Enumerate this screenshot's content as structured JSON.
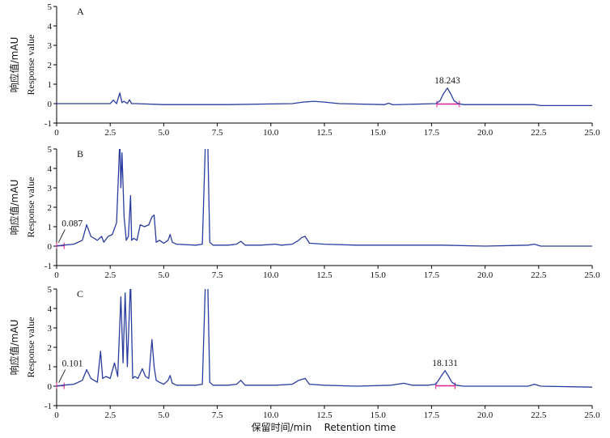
{
  "chart_data": [
    {
      "type": "line",
      "panel": "A",
      "ylabel_cn": "响应值/mAU",
      "ylabel_en": "Response value",
      "xlim": [
        0,
        25.0
      ],
      "ylim": [
        -1,
        5
      ],
      "yticks": [
        -1,
        0,
        1,
        2,
        3,
        4,
        5
      ],
      "xticks": [
        "0",
        "2.5",
        "5.0",
        "7.5",
        "10.0",
        "12.5",
        "15.0",
        "17.5",
        "20.0",
        "22.5",
        "25.0"
      ],
      "series": [
        {
          "color": "#2a3d9e",
          "x": [
            0,
            1.3,
            2.5,
            2.65,
            2.8,
            2.95,
            3.05,
            3.15,
            3.3,
            3.4,
            3.5,
            3.7,
            5,
            8,
            11,
            11.5,
            12,
            12.5,
            13.2,
            15.3,
            15.5,
            15.7,
            17.7,
            17.9,
            18.05,
            18.24,
            18.4,
            18.55,
            18.75,
            19,
            20,
            22.3,
            22.6,
            25
          ],
          "y": [
            0,
            0,
            0,
            0.18,
            0,
            0.55,
            0.05,
            0.12,
            0,
            0.2,
            0,
            0,
            -0.05,
            -0.05,
            0,
            0.08,
            0.12,
            0.08,
            0,
            -0.05,
            0.02,
            -0.06,
            0,
            0.15,
            0.5,
            0.8,
            0.5,
            0.15,
            0,
            -0.05,
            -0.05,
            -0.05,
            -0.1,
            -0.1
          ]
        }
      ],
      "baselines": [
        {
          "color": "#e0208a",
          "x": [
            17.75,
            18.8
          ],
          "y": [
            -0.02,
            -0.02
          ]
        }
      ],
      "annotations": [
        {
          "text": "18.243",
          "x": 18.24,
          "y": 0.8
        }
      ]
    },
    {
      "type": "line",
      "panel": "B",
      "ylabel_cn": "响应值/mAU",
      "ylabel_en": "Response value",
      "xlim": [
        0,
        25.0
      ],
      "ylim": [
        -1,
        5
      ],
      "yticks": [
        -1,
        0,
        1,
        2,
        3,
        4,
        5
      ],
      "xticks": [
        "0",
        "2.5",
        "5.0",
        "7.5",
        "10.0",
        "12.5",
        "15.0",
        "17.5",
        "20.0",
        "22.5",
        "25.0"
      ],
      "series": [
        {
          "color": "#2a3d9e",
          "x": [
            0,
            0.3,
            0.8,
            1.2,
            1.4,
            1.6,
            1.9,
            2.1,
            2.2,
            2.4,
            2.6,
            2.8,
            2.95,
            3.0,
            3.05,
            3.15,
            3.25,
            3.35,
            3.45,
            3.5,
            3.6,
            3.75,
            3.9,
            4.1,
            4.3,
            4.45,
            4.55,
            4.65,
            4.8,
            5.0,
            5.2,
            5.3,
            5.4,
            5.6,
            6.5,
            6.8,
            6.95,
            7.05,
            7.15,
            7.3,
            8.0,
            8.4,
            8.6,
            8.8,
            9.5,
            10.2,
            10.5,
            11.0,
            11.3,
            11.45,
            11.6,
            11.8,
            12.5,
            14,
            16,
            18,
            20,
            22.0,
            22.3,
            22.6,
            25
          ],
          "y": [
            0,
            0.05,
            0.1,
            0.3,
            1.1,
            0.5,
            0.3,
            0.5,
            0.2,
            0.5,
            0.6,
            1.2,
            5.5,
            3.0,
            4.8,
            1.5,
            0.3,
            0.5,
            2.6,
            0.3,
            0.4,
            0.3,
            1.1,
            1.0,
            1.1,
            1.5,
            1.6,
            0.2,
            0.3,
            0.15,
            0.3,
            0.6,
            0.2,
            0.1,
            0.05,
            0.1,
            5.5,
            5.5,
            0.2,
            0.05,
            0.05,
            0.1,
            0.25,
            0.05,
            0.05,
            0.1,
            0.05,
            0.1,
            0.3,
            0.45,
            0.5,
            0.15,
            0.1,
            0.05,
            0.05,
            0.05,
            0.0,
            0.05,
            0.1,
            0.0,
            0.0
          ]
        }
      ],
      "baselines": [
        {
          "color": "#e0208a",
          "x": [
            0,
            0.35
          ],
          "y": [
            0.02,
            0.02
          ]
        }
      ],
      "annotations": [
        {
          "text": "0.087",
          "x": 0.087,
          "y": 0.1
        }
      ]
    },
    {
      "type": "line",
      "panel": "C",
      "ylabel_cn": "响应值/mAU",
      "ylabel_en": "Response value",
      "xlabel": "保留时间/min    Retention time",
      "xlim": [
        0,
        25.0
      ],
      "ylim": [
        -1,
        5
      ],
      "yticks": [
        -1,
        0,
        1,
        2,
        3,
        4,
        5
      ],
      "xticks": [
        "0",
        "2.5",
        "5.0",
        "7.5",
        "10.0",
        "12.5",
        "15.0",
        "17.5",
        "20.0",
        "22.5",
        "25.0"
      ],
      "series": [
        {
          "color": "#2a3d9e",
          "x": [
            0,
            0.3,
            0.8,
            1.2,
            1.4,
            1.6,
            1.9,
            2.05,
            2.15,
            2.3,
            2.5,
            2.7,
            2.85,
            3.0,
            3.1,
            3.2,
            3.3,
            3.45,
            3.55,
            3.65,
            3.8,
            4.0,
            4.15,
            4.3,
            4.45,
            4.55,
            4.65,
            4.8,
            5.0,
            5.2,
            5.3,
            5.4,
            5.6,
            6.5,
            6.8,
            6.95,
            7.05,
            7.15,
            7.3,
            8.0,
            8.4,
            8.6,
            8.8,
            9.5,
            10.2,
            11.0,
            11.3,
            11.45,
            11.6,
            11.8,
            12.5,
            14,
            15.6,
            16.2,
            16.6,
            17.3,
            17.7,
            17.85,
            18.0,
            18.13,
            18.3,
            18.45,
            18.65,
            19,
            20,
            22.0,
            22.3,
            22.6,
            25
          ],
          "y": [
            0,
            0.05,
            0.1,
            0.3,
            0.85,
            0.4,
            0.2,
            1.8,
            0.4,
            0.5,
            0.4,
            1.2,
            0.5,
            4.6,
            1.2,
            4.8,
            1.0,
            5.5,
            0.4,
            0.5,
            0.4,
            0.9,
            0.5,
            0.4,
            2.4,
            1.0,
            0.3,
            0.2,
            0.1,
            0.3,
            0.55,
            0.15,
            0.05,
            0.05,
            0.1,
            5.5,
            5.5,
            0.2,
            0.05,
            0.05,
            0.1,
            0.3,
            0.05,
            0.05,
            0.05,
            0.1,
            0.3,
            0.35,
            0.4,
            0.1,
            0.05,
            0.0,
            0.05,
            0.15,
            0.05,
            0.05,
            0.1,
            0.35,
            0.6,
            0.8,
            0.5,
            0.2,
            0.05,
            0.0,
            0.0,
            0.0,
            0.1,
            0.0,
            -0.05
          ]
        }
      ],
      "baselines": [
        {
          "color": "#e0208a",
          "x": [
            0,
            0.35
          ],
          "y": [
            0.02,
            0.02
          ]
        },
        {
          "color": "#e0208a",
          "x": [
            17.7,
            18.6
          ],
          "y": [
            0.02,
            0.02
          ]
        }
      ],
      "annotations": [
        {
          "text": "0.101",
          "x": 0.101,
          "y": 0.1
        },
        {
          "text": "18.131",
          "x": 18.13,
          "y": 0.8
        }
      ]
    }
  ]
}
